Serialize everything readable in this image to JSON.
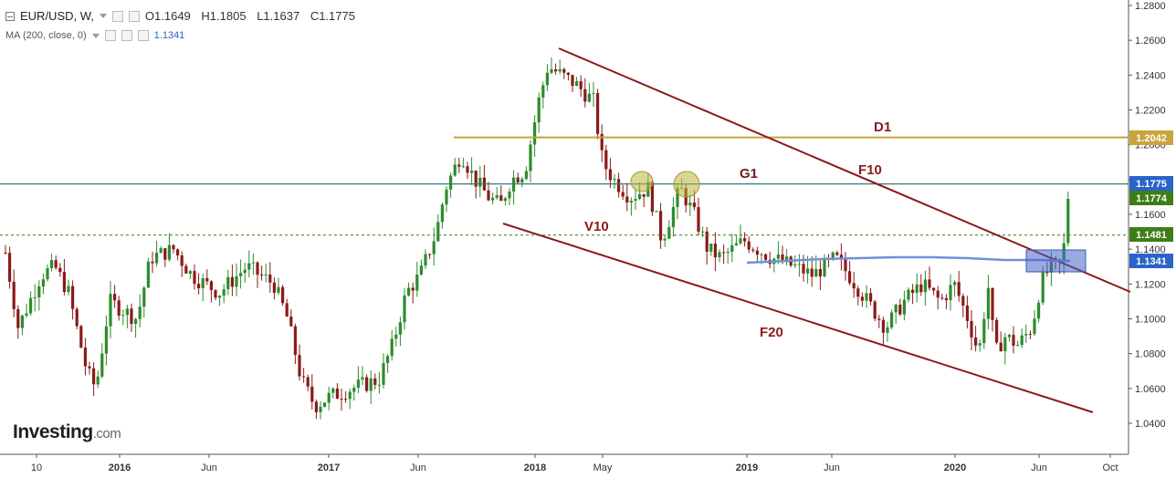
{
  "header": {
    "symbol": "EUR/USD, W,",
    "open": "O1.1649",
    "high": "H1.1805",
    "low": "L1.1637",
    "close": "C1.1775",
    "ma_label": "MA (200, close, 0)",
    "ma_value": "1.1341"
  },
  "logo": {
    "main": "Investing",
    "suffix": ".com"
  },
  "colors": {
    "up": "#2e8b2e",
    "down": "#8b1a1a",
    "ma": "#6b94d8",
    "channel": "#8b1a1a",
    "d1": "#c8a53a",
    "price_line": "#2f7d78",
    "dotted": "#4f8a1f"
  },
  "chart_data": {
    "type": "candlestick",
    "x_axis_labels": [
      "10",
      "2016",
      "Jun",
      "2017",
      "Jun",
      "2018",
      "May",
      "2019",
      "Jun",
      "2020",
      "Jun",
      "Oct"
    ],
    "y_axis_labels": [
      "1.2800",
      "1.2600",
      "1.2400",
      "1.2200",
      "1.2000",
      "1.1800",
      "1.1600",
      "1.1400",
      "1.1200",
      "1.1000",
      "1.0800",
      "1.0600",
      "1.0400"
    ],
    "ylim": [
      1.03,
      1.285
    ],
    "price_tags": [
      {
        "value": "1.2042",
        "price": 1.2042,
        "color": "#c8a53a"
      },
      {
        "value": "1.1775",
        "price": 1.1775,
        "color": "#2a63c9"
      },
      {
        "value": "1.1774",
        "price": 1.1774,
        "color": "#3e7d18"
      },
      {
        "value": "1.1481",
        "price": 1.1481,
        "color": "#3e7d18"
      },
      {
        "value": "1.1341",
        "price": 1.1341,
        "color": "#2a63c9"
      }
    ],
    "annotations": [
      "D1",
      "G1",
      "F10",
      "V10",
      "F20"
    ],
    "horizontal_levels": {
      "D1": 1.2042,
      "G1": 1.1775,
      "dotted": 1.1481
    }
  }
}
